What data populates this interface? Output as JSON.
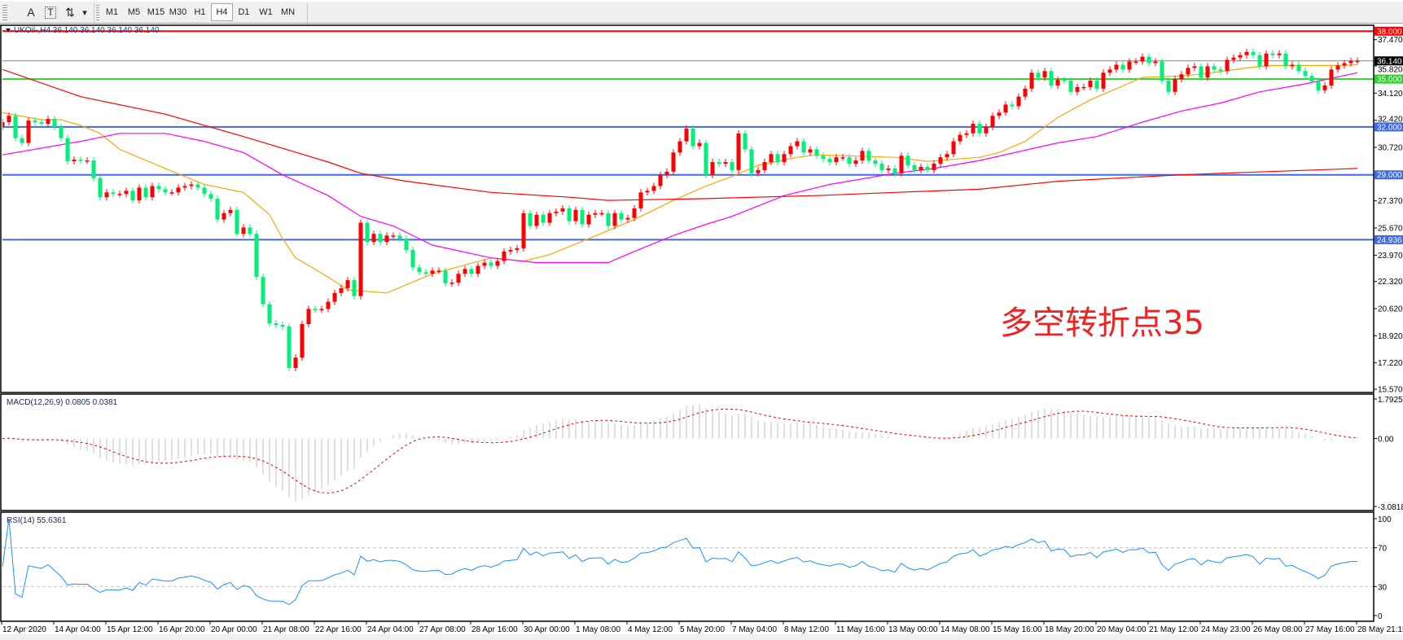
{
  "toolbar": {
    "tools": [
      {
        "name": "fibonacci-grip-icon",
        "label": ""
      },
      {
        "name": "text-A-icon",
        "label": "A"
      },
      {
        "name": "text-label-icon",
        "label": "T"
      },
      {
        "name": "arrows-icon",
        "label": "⇅"
      },
      {
        "name": "chevron-down-icon",
        "label": "▾"
      }
    ],
    "timeframes": [
      "M1",
      "M5",
      "M15",
      "M30",
      "H1",
      "H4",
      "D1",
      "W1",
      "MN"
    ],
    "active_timeframe": "H4"
  },
  "chart_data": [
    {
      "type": "candlestick",
      "title": "UKOil-,H4  36.140 36.140 36.140 36.140",
      "ylim": [
        15.57,
        38.0
      ],
      "y_ticks": [
        "37.470",
        "35.820",
        "34.120",
        "32.420",
        "30.720",
        "27.370",
        "25.670",
        "23.970",
        "22.320",
        "20.620",
        "18.920",
        "17.220",
        "15.570"
      ],
      "x_tick_labels": [
        "12 Apr 2020",
        "14 Apr 04:00",
        "15 Apr 12:00",
        "16 Apr 20:00",
        "20 Apr 00:00",
        "21 Apr 08:00",
        "22 Apr 16:00",
        "24 Apr 04:00",
        "27 Apr 08:00",
        "28 Apr 16:00",
        "30 Apr 00:00",
        "1 May 08:00",
        "4 May 12:00",
        "5 May 20:00",
        "7 May 04:00",
        "8 May 12:00",
        "11 May 16:00",
        "13 May 00:00",
        "14 May 08:00",
        "15 May 16:00",
        "18 May 20:00",
        "20 May 04:00",
        "21 May 12:00",
        "24 May 23:00",
        "26 May 08:00",
        "27 May 16:00",
        "28 May 21:15"
      ],
      "colors": {
        "up": "#ff0000",
        "down": "#00f078"
      },
      "first_open": 32.0,
      "closes": [
        32.3,
        32.7,
        31.3,
        31.0,
        32.4,
        32.3,
        32.2,
        32.5,
        32.0,
        31.3,
        29.85,
        29.95,
        29.9,
        29.9,
        28.8,
        27.6,
        27.9,
        27.8,
        27.8,
        28.0,
        27.4,
        28.2,
        27.6,
        28.3,
        28.1,
        27.9,
        27.9,
        28.2,
        28.3,
        28.4,
        28.2,
        27.8,
        27.5,
        26.2,
        26.6,
        26.8,
        25.3,
        25.7,
        25.3,
        22.6,
        20.9,
        19.7,
        19.6,
        19.5,
        16.9,
        17.55,
        19.65,
        20.6,
        20.55,
        20.6,
        21.05,
        21.6,
        21.9,
        22.4,
        21.4,
        26.0,
        24.8,
        25.3,
        24.8,
        25.2,
        25.2,
        25.0,
        24.3,
        23.2,
        22.9,
        22.8,
        23.0,
        23.0,
        22.2,
        22.25,
        22.8,
        23.1,
        22.8,
        23.3,
        23.5,
        23.3,
        23.6,
        24.2,
        24.3,
        24.4,
        26.6,
        25.8,
        26.5,
        26.0,
        26.6,
        26.7,
        26.9,
        26.1,
        26.8,
        25.9,
        26.5,
        26.6,
        26.6,
        25.8,
        26.6,
        26.2,
        26.3,
        26.9,
        27.9,
        28.0,
        28.3,
        29.0,
        29.2,
        30.4,
        31.1,
        31.9,
        30.8,
        31.0,
        29.0,
        29.8,
        29.7,
        29.8,
        29.3,
        31.6,
        30.6,
        29.1,
        29.3,
        29.8,
        30.3,
        29.8,
        30.3,
        30.8,
        31.1,
        30.4,
        30.6,
        30.2,
        30.0,
        29.8,
        30.1,
        30.1,
        29.7,
        29.9,
        30.5,
        29.9,
        29.7,
        29.3,
        29.4,
        29.1,
        30.2,
        29.6,
        29.3,
        29.5,
        29.3,
        29.7,
        30.1,
        30.3,
        31.1,
        31.5,
        31.6,
        32.2,
        31.6,
        32.0,
        32.7,
        32.9,
        33.4,
        33.3,
        33.9,
        34.4,
        35.4,
        35.1,
        35.5,
        34.6,
        34.95,
        34.9,
        34.2,
        34.5,
        34.5,
        34.9,
        34.4,
        35.4,
        35.6,
        35.9,
        35.6,
        36.1,
        36.1,
        36.4,
        36.0,
        36.1,
        34.9,
        34.2,
        35.0,
        35.3,
        35.7,
        35.8,
        35.1,
        35.8,
        35.6,
        35.5,
        36.2,
        36.35,
        36.5,
        36.7,
        36.5,
        35.8,
        36.6,
        36.5,
        36.6,
        35.8,
        35.9,
        35.5,
        35.2,
        34.85,
        34.3,
        34.6,
        35.6,
        35.85,
        36.0,
        36.14,
        36.14
      ],
      "moving_averages": [
        {
          "color": "#ffa500",
          "points": [
            [
              0,
              32.9
            ],
            [
              6,
              32.45
            ],
            [
              9,
              32.45
            ],
            [
              12,
              32.1
            ],
            [
              15,
              31.6
            ],
            [
              18,
              30.6
            ],
            [
              25,
              29.4
            ],
            [
              31,
              28.4
            ],
            [
              37,
              27.9
            ],
            [
              39,
              27.2
            ],
            [
              41,
              26.5
            ],
            [
              43,
              25.0
            ],
            [
              45,
              23.8
            ],
            [
              50,
              22.6
            ],
            [
              53,
              21.8
            ],
            [
              59,
              21.6
            ],
            [
              66,
              22.8
            ],
            [
              75,
              23.8
            ],
            [
              80,
              23.6
            ],
            [
              84,
              24.0
            ],
            [
              90,
              25.0
            ],
            [
              97,
              26.2
            ],
            [
              103,
              27.4
            ],
            [
              108,
              28.3
            ],
            [
              112,
              28.9
            ],
            [
              116,
              29.6
            ],
            [
              122,
              30.1
            ],
            [
              125,
              30.25
            ],
            [
              137,
              30.1
            ],
            [
              142,
              29.85
            ],
            [
              150,
              30.1
            ],
            [
              153,
              30.4
            ],
            [
              157,
              31.1
            ],
            [
              162,
              32.6
            ],
            [
              167,
              33.7
            ],
            [
              171,
              34.4
            ],
            [
              175,
              35.1
            ],
            [
              181,
              35.2
            ],
            [
              185,
              35.35
            ],
            [
              191,
              35.7
            ],
            [
              195,
              35.85
            ],
            [
              205,
              35.85
            ],
            [
              208,
              35.9
            ]
          ]
        },
        {
          "color": "#ff00ff",
          "points": [
            [
              0,
              30.25
            ],
            [
              12,
              31.1
            ],
            [
              18,
              31.6
            ],
            [
              25,
              31.6
            ],
            [
              31,
              31.1
            ],
            [
              37,
              30.4
            ],
            [
              43,
              29.0
            ],
            [
              50,
              27.7
            ],
            [
              55,
              26.4
            ],
            [
              60,
              25.8
            ],
            [
              66,
              24.6
            ],
            [
              75,
              23.8
            ],
            [
              82,
              23.5
            ],
            [
              93,
              23.5
            ],
            [
              97,
              24.2
            ],
            [
              103,
              25.2
            ],
            [
              108,
              25.9
            ],
            [
              112,
              26.4
            ],
            [
              120,
              27.7
            ],
            [
              127,
              28.4
            ],
            [
              137,
              29.1
            ],
            [
              143,
              29.4
            ],
            [
              150,
              29.9
            ],
            [
              162,
              31.0
            ],
            [
              168,
              31.4
            ],
            [
              175,
              32.3
            ],
            [
              181,
              33.0
            ],
            [
              187,
              33.5
            ],
            [
              193,
              34.2
            ],
            [
              200,
              34.7
            ],
            [
              208,
              35.4
            ]
          ]
        },
        {
          "color": "#ff0000",
          "points": [
            [
              0,
              35.6
            ],
            [
              12,
              33.9
            ],
            [
              25,
              32.8
            ],
            [
              37,
              31.4
            ],
            [
              50,
              29.8
            ],
            [
              55,
              29.1
            ],
            [
              62,
              28.6
            ],
            [
              75,
              27.9
            ],
            [
              87,
              27.6
            ],
            [
              93,
              27.4
            ],
            [
              107,
              27.5
            ],
            [
              125,
              27.7
            ],
            [
              137,
              27.9
            ],
            [
              150,
              28.1
            ],
            [
              162,
              28.6
            ],
            [
              181,
              29.0
            ],
            [
              187,
              29.1
            ],
            [
              208,
              29.4
            ]
          ]
        }
      ],
      "hlines": [
        {
          "value": 38.0,
          "label": "38.000",
          "color": "#ff0000",
          "width": 2
        },
        {
          "value": 35.0,
          "label": "35.000",
          "color": "#32cd32",
          "width": 2
        },
        {
          "value": 32.0,
          "label": "32.000",
          "color": "#4169e1",
          "width": 2
        },
        {
          "value": 29.0,
          "label": "29.000",
          "color": "#4169e1",
          "width": 2
        },
        {
          "value": 24.936,
          "label": "24.936",
          "color": "#4169e1",
          "width": 2
        }
      ],
      "current_price": {
        "value": 36.14,
        "label": "36.140",
        "color": "#000000"
      },
      "annotation": {
        "text": "多空转折点35",
        "color": "#ee2222"
      }
    },
    {
      "type": "macd",
      "title": "MACD(12,26,9) 0.0805 0.0381",
      "params": [
        12,
        26,
        9
      ],
      "ylim": [
        -3.0818,
        1.7925
      ],
      "y_ticks": [
        "1.7925",
        "0.00",
        "-3.0818"
      ],
      "colors": {
        "histogram": "#c0c0c0",
        "signal": "#ff0000"
      }
    },
    {
      "type": "line",
      "title": "RSI(14) 55.6361",
      "period": 14,
      "ylim": [
        0,
        100
      ],
      "y_ticks": [
        "100",
        "70",
        "30",
        "0"
      ],
      "levels": [
        70,
        30
      ],
      "colors": {
        "line": "#1e90ff",
        "levels": "#c0c0c0"
      }
    }
  ]
}
